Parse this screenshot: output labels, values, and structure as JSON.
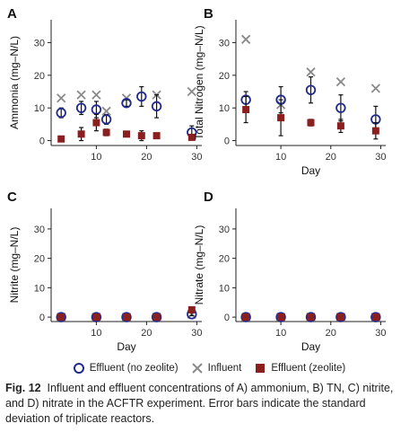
{
  "legend": {
    "effluent_no_zeolite": "Effluent (no zeolite)",
    "influent": "Influent",
    "effluent_zeolite": "Effluent (zeolite)"
  },
  "colors": {
    "effluent_no_zeolite": "#1f2a8c",
    "influent": "#8a8a8a",
    "effluent_zeolite": "#8b1e1e"
  },
  "caption": {
    "label": "Fig. 12",
    "text": "Influent and effluent concentrations of A) ammonium, B) TN, C) nitrite, and D) nitrate in the ACFTR experiment. Error bars indicate the standard deviation of triplicate reactors."
  },
  "chart_data": [
    {
      "type": "scatter",
      "panel": "A",
      "ylabel": "Ammonia (mg–N/L)",
      "xlabel": "",
      "xlim": [
        1,
        31
      ],
      "ylim": [
        -1.5,
        37
      ],
      "xticks": [
        10,
        20,
        30
      ],
      "yticks": [
        0,
        10,
        20,
        30
      ],
      "series": [
        {
          "name": "Influent",
          "marker": "x",
          "x": [
            3,
            7,
            10,
            12,
            16,
            22,
            29
          ],
          "y": [
            13,
            14,
            14,
            9,
            13,
            14,
            15
          ]
        },
        {
          "name": "Effluent (no zeolite)",
          "marker": "circle",
          "x": [
            3,
            7,
            10,
            12,
            16,
            19,
            22,
            29
          ],
          "y": [
            8.5,
            10,
            9.5,
            6.5,
            11.5,
            13.5,
            10.5,
            2.5
          ],
          "err": [
            1.5,
            2,
            2.5,
            1.5,
            1,
            3,
            3.5,
            2
          ]
        },
        {
          "name": "Effluent (zeolite)",
          "marker": "square",
          "x": [
            3,
            7,
            10,
            12,
            16,
            19,
            22,
            29
          ],
          "y": [
            0.5,
            2,
            5.5,
            2.5,
            2,
            1.5,
            1.5,
            1
          ],
          "err": [
            0.5,
            2,
            2.5,
            1,
            0.8,
            1.5,
            0.5,
            0.5
          ]
        }
      ]
    },
    {
      "type": "scatter",
      "panel": "B",
      "ylabel": "Total Nitrogen (mg–N/L)",
      "xlabel": "Day",
      "xlim": [
        1,
        31
      ],
      "ylim": [
        -1.5,
        37
      ],
      "xticks": [
        10,
        20,
        30
      ],
      "yticks": [
        0,
        10,
        20,
        30
      ],
      "series": [
        {
          "name": "Influent",
          "marker": "x",
          "x": [
            3,
            10,
            16,
            22,
            29
          ],
          "y": [
            31,
            11,
            21,
            18,
            16
          ]
        },
        {
          "name": "Effluent (no zeolite)",
          "marker": "circle",
          "x": [
            3,
            10,
            16,
            22,
            29
          ],
          "y": [
            12.5,
            12.5,
            15.5,
            10,
            6.5
          ],
          "err": [
            2.5,
            4,
            4,
            4,
            4
          ]
        },
        {
          "name": "Effluent (zeolite)",
          "marker": "square",
          "x": [
            3,
            10,
            16,
            22,
            29
          ],
          "y": [
            9.5,
            7,
            5.5,
            4.5,
            3
          ],
          "err": [
            4,
            5.5,
            1,
            2,
            2.5
          ]
        }
      ]
    },
    {
      "type": "scatter",
      "panel": "C",
      "ylabel": "Nitrite (mg–N/L)",
      "xlabel": "Day",
      "xlim": [
        1,
        31
      ],
      "ylim": [
        -1.5,
        37
      ],
      "xticks": [
        10,
        20,
        30
      ],
      "yticks": [
        0,
        10,
        20,
        30
      ],
      "series": [
        {
          "name": "Influent",
          "marker": "x",
          "x": [
            3,
            10,
            16,
            22,
            29
          ],
          "y": [
            0,
            0,
            0,
            0,
            1
          ]
        },
        {
          "name": "Effluent (no zeolite)",
          "marker": "circle",
          "x": [
            3,
            10,
            16,
            22,
            29
          ],
          "y": [
            0,
            0,
            0,
            0,
            1
          ],
          "err": [
            0,
            0,
            0,
            0,
            0.5
          ]
        },
        {
          "name": "Effluent (zeolite)",
          "marker": "square",
          "x": [
            3,
            10,
            16,
            22,
            29
          ],
          "y": [
            0,
            0,
            0,
            0,
            2.5
          ],
          "err": [
            0,
            0,
            0,
            0,
            0.5
          ]
        }
      ]
    },
    {
      "type": "scatter",
      "panel": "D",
      "ylabel": "Nitrate (mg–N/L)",
      "xlabel": "Day",
      "xlim": [
        1,
        31
      ],
      "ylim": [
        -1.5,
        37
      ],
      "xticks": [
        10,
        20,
        30
      ],
      "yticks": [
        0,
        10,
        20,
        30
      ],
      "series": [
        {
          "name": "Influent",
          "marker": "x",
          "x": [
            3,
            10,
            16,
            22,
            29
          ],
          "y": [
            0,
            0,
            0,
            0,
            0
          ]
        },
        {
          "name": "Effluent (no zeolite)",
          "marker": "circle",
          "x": [
            3,
            10,
            16,
            22,
            29
          ],
          "y": [
            0,
            0,
            0,
            0,
            0
          ],
          "err": [
            0,
            0,
            0,
            0,
            0
          ]
        },
        {
          "name": "Effluent (zeolite)",
          "marker": "square",
          "x": [
            3,
            10,
            16,
            22,
            29
          ],
          "y": [
            0,
            0,
            0,
            0,
            0
          ],
          "err": [
            0,
            0,
            0,
            0,
            0
          ]
        }
      ]
    }
  ]
}
